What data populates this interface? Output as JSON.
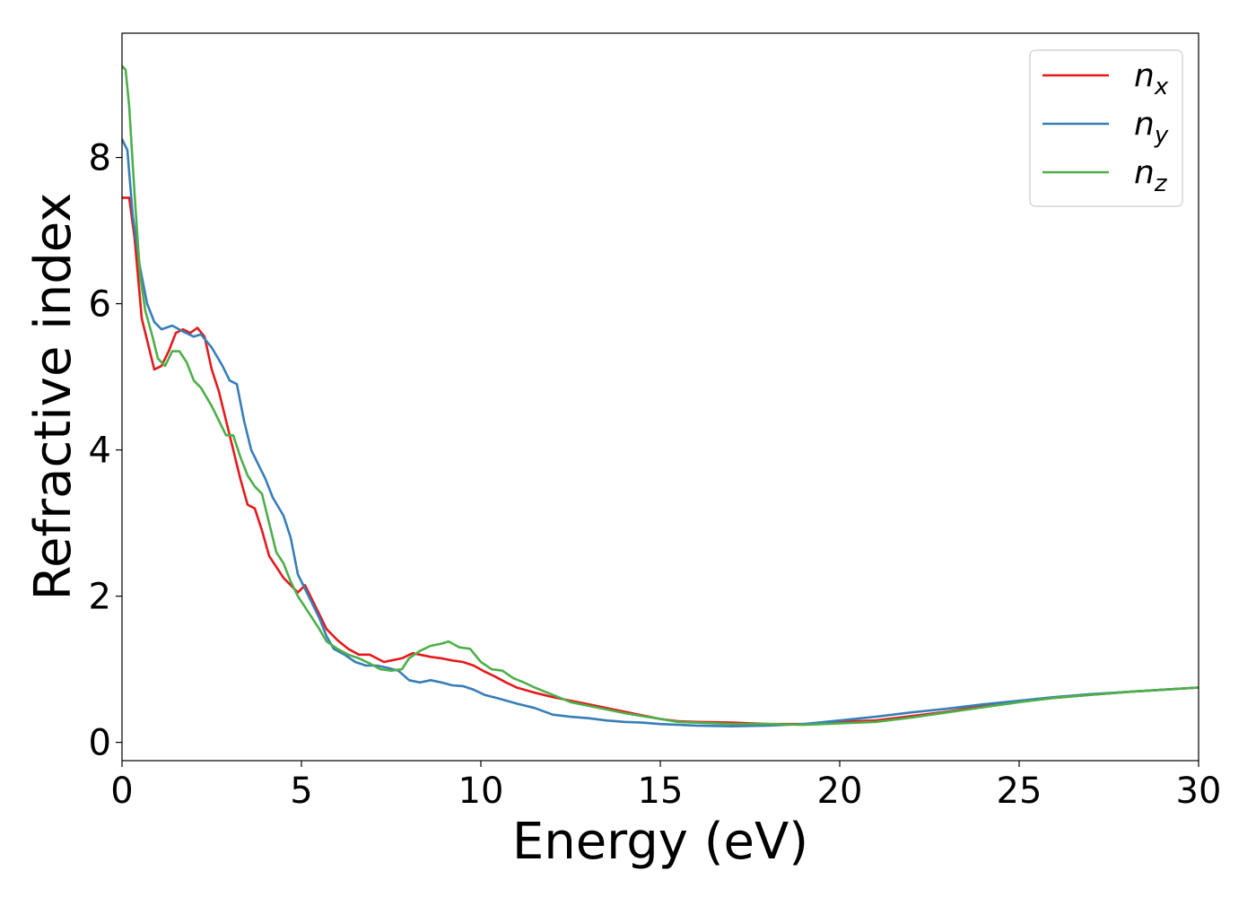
{
  "chart_data": {
    "type": "line",
    "title": "",
    "xlabel": "Energy (eV)",
    "ylabel": "Refractive index",
    "xlim": [
      0,
      30
    ],
    "ylim": [
      -0.25,
      9.7
    ],
    "xticks": [
      "0",
      "5",
      "10",
      "15",
      "20",
      "25",
      "30"
    ],
    "yticks": [
      "0",
      "2",
      "4",
      "6",
      "8"
    ],
    "grid": false,
    "legend_position": "top-right",
    "series": [
      {
        "name": "n",
        "subscript": "x",
        "color": "#e41a1c",
        "points": [
          [
            0,
            7.45
          ],
          [
            0.2,
            7.45
          ],
          [
            0.35,
            6.9
          ],
          [
            0.55,
            5.8
          ],
          [
            0.7,
            5.5
          ],
          [
            0.9,
            5.1
          ],
          [
            1.1,
            5.15
          ],
          [
            1.3,
            5.35
          ],
          [
            1.5,
            5.6
          ],
          [
            1.7,
            5.65
          ],
          [
            1.9,
            5.6
          ],
          [
            2.1,
            5.67
          ],
          [
            2.3,
            5.55
          ],
          [
            2.5,
            5.1
          ],
          [
            2.7,
            4.8
          ],
          [
            2.9,
            4.4
          ],
          [
            3.1,
            4.0
          ],
          [
            3.3,
            3.6
          ],
          [
            3.5,
            3.25
          ],
          [
            3.7,
            3.2
          ],
          [
            3.9,
            2.9
          ],
          [
            4.1,
            2.55
          ],
          [
            4.3,
            2.4
          ],
          [
            4.5,
            2.25
          ],
          [
            4.7,
            2.15
          ],
          [
            4.9,
            2.05
          ],
          [
            5.1,
            2.15
          ],
          [
            5.3,
            1.95
          ],
          [
            5.5,
            1.75
          ],
          [
            5.7,
            1.55
          ],
          [
            6.0,
            1.4
          ],
          [
            6.3,
            1.28
          ],
          [
            6.6,
            1.2
          ],
          [
            6.9,
            1.2
          ],
          [
            7.1,
            1.15
          ],
          [
            7.3,
            1.1
          ],
          [
            7.5,
            1.12
          ],
          [
            7.8,
            1.15
          ],
          [
            8.1,
            1.22
          ],
          [
            8.3,
            1.2
          ],
          [
            8.6,
            1.17
          ],
          [
            8.9,
            1.15
          ],
          [
            9.2,
            1.12
          ],
          [
            9.5,
            1.1
          ],
          [
            9.8,
            1.05
          ],
          [
            10.1,
            0.97
          ],
          [
            10.4,
            0.9
          ],
          [
            10.7,
            0.82
          ],
          [
            11.0,
            0.75
          ],
          [
            11.5,
            0.68
          ],
          [
            12.0,
            0.62
          ],
          [
            12.5,
            0.57
          ],
          [
            13.0,
            0.52
          ],
          [
            13.5,
            0.47
          ],
          [
            14.0,
            0.42
          ],
          [
            14.5,
            0.37
          ],
          [
            15.0,
            0.32
          ],
          [
            15.5,
            0.29
          ],
          [
            16.0,
            0.28
          ],
          [
            17.0,
            0.27
          ],
          [
            18.0,
            0.25
          ],
          [
            19.0,
            0.25
          ],
          [
            20.0,
            0.28
          ],
          [
            21.0,
            0.3
          ],
          [
            22.0,
            0.36
          ],
          [
            23.0,
            0.42
          ],
          [
            24.0,
            0.5
          ],
          [
            25.0,
            0.56
          ],
          [
            26.0,
            0.61
          ],
          [
            27.0,
            0.65
          ],
          [
            28.0,
            0.69
          ],
          [
            29.0,
            0.72
          ],
          [
            30.0,
            0.75
          ]
        ]
      },
      {
        "name": "n",
        "subscript": "y",
        "color": "#377eb8",
        "points": [
          [
            0,
            8.25
          ],
          [
            0.15,
            8.1
          ],
          [
            0.3,
            7.2
          ],
          [
            0.5,
            6.5
          ],
          [
            0.7,
            6.0
          ],
          [
            0.9,
            5.75
          ],
          [
            1.1,
            5.65
          ],
          [
            1.4,
            5.7
          ],
          [
            1.7,
            5.62
          ],
          [
            2.0,
            5.55
          ],
          [
            2.2,
            5.58
          ],
          [
            2.5,
            5.4
          ],
          [
            2.8,
            5.15
          ],
          [
            3.0,
            4.95
          ],
          [
            3.2,
            4.9
          ],
          [
            3.4,
            4.4
          ],
          [
            3.6,
            4.0
          ],
          [
            3.8,
            3.8
          ],
          [
            4.0,
            3.6
          ],
          [
            4.2,
            3.35
          ],
          [
            4.5,
            3.1
          ],
          [
            4.7,
            2.8
          ],
          [
            4.9,
            2.3
          ],
          [
            5.1,
            2.1
          ],
          [
            5.3,
            1.9
          ],
          [
            5.5,
            1.7
          ],
          [
            5.7,
            1.45
          ],
          [
            5.9,
            1.28
          ],
          [
            6.2,
            1.2
          ],
          [
            6.5,
            1.1
          ],
          [
            6.8,
            1.05
          ],
          [
            7.1,
            1.05
          ],
          [
            7.4,
            1.02
          ],
          [
            7.7,
            0.98
          ],
          [
            8.0,
            0.85
          ],
          [
            8.3,
            0.82
          ],
          [
            8.6,
            0.85
          ],
          [
            8.9,
            0.82
          ],
          [
            9.2,
            0.78
          ],
          [
            9.5,
            0.77
          ],
          [
            9.8,
            0.72
          ],
          [
            10.1,
            0.65
          ],
          [
            10.5,
            0.6
          ],
          [
            11.0,
            0.53
          ],
          [
            11.5,
            0.47
          ],
          [
            12.0,
            0.38
          ],
          [
            12.5,
            0.35
          ],
          [
            13.0,
            0.33
          ],
          [
            13.5,
            0.3
          ],
          [
            14.0,
            0.28
          ],
          [
            14.5,
            0.27
          ],
          [
            15.0,
            0.25
          ],
          [
            16.0,
            0.23
          ],
          [
            17.0,
            0.22
          ],
          [
            18.0,
            0.23
          ],
          [
            19.0,
            0.25
          ],
          [
            20.0,
            0.3
          ],
          [
            21.0,
            0.35
          ],
          [
            22.0,
            0.41
          ],
          [
            23.0,
            0.46
          ],
          [
            24.0,
            0.52
          ],
          [
            25.0,
            0.57
          ],
          [
            26.0,
            0.62
          ],
          [
            27.0,
            0.66
          ],
          [
            28.0,
            0.69
          ],
          [
            29.0,
            0.72
          ],
          [
            30.0,
            0.75
          ]
        ]
      },
      {
        "name": "n",
        "subscript": "z",
        "color": "#4daf4a",
        "points": [
          [
            0,
            9.25
          ],
          [
            0.1,
            9.2
          ],
          [
            0.2,
            8.7
          ],
          [
            0.35,
            7.5
          ],
          [
            0.5,
            6.4
          ],
          [
            0.65,
            5.9
          ],
          [
            0.85,
            5.55
          ],
          [
            1.0,
            5.25
          ],
          [
            1.2,
            5.15
          ],
          [
            1.4,
            5.35
          ],
          [
            1.6,
            5.35
          ],
          [
            1.8,
            5.2
          ],
          [
            2.0,
            4.95
          ],
          [
            2.2,
            4.85
          ],
          [
            2.5,
            4.6
          ],
          [
            2.7,
            4.4
          ],
          [
            2.9,
            4.2
          ],
          [
            3.1,
            4.2
          ],
          [
            3.3,
            3.9
          ],
          [
            3.5,
            3.65
          ],
          [
            3.7,
            3.5
          ],
          [
            3.9,
            3.4
          ],
          [
            4.1,
            3.0
          ],
          [
            4.3,
            2.6
          ],
          [
            4.5,
            2.45
          ],
          [
            4.7,
            2.2
          ],
          [
            4.9,
            2.0
          ],
          [
            5.1,
            1.85
          ],
          [
            5.3,
            1.7
          ],
          [
            5.5,
            1.55
          ],
          [
            5.7,
            1.38
          ],
          [
            6.0,
            1.28
          ],
          [
            6.3,
            1.2
          ],
          [
            6.6,
            1.15
          ],
          [
            6.9,
            1.08
          ],
          [
            7.2,
            1.0
          ],
          [
            7.5,
            0.98
          ],
          [
            7.8,
            1.0
          ],
          [
            8.0,
            1.15
          ],
          [
            8.3,
            1.25
          ],
          [
            8.6,
            1.32
          ],
          [
            8.9,
            1.35
          ],
          [
            9.1,
            1.38
          ],
          [
            9.4,
            1.3
          ],
          [
            9.7,
            1.28
          ],
          [
            10.0,
            1.1
          ],
          [
            10.3,
            1.0
          ],
          [
            10.6,
            0.98
          ],
          [
            10.9,
            0.88
          ],
          [
            11.2,
            0.82
          ],
          [
            11.5,
            0.75
          ],
          [
            12.0,
            0.65
          ],
          [
            12.5,
            0.55
          ],
          [
            13.0,
            0.5
          ],
          [
            13.5,
            0.45
          ],
          [
            14.0,
            0.4
          ],
          [
            14.5,
            0.36
          ],
          [
            15.0,
            0.32
          ],
          [
            15.5,
            0.28
          ],
          [
            16.0,
            0.27
          ],
          [
            17.0,
            0.25
          ],
          [
            18.0,
            0.25
          ],
          [
            19.0,
            0.24
          ],
          [
            20.0,
            0.26
          ],
          [
            21.0,
            0.28
          ],
          [
            22.0,
            0.34
          ],
          [
            23.0,
            0.41
          ],
          [
            24.0,
            0.48
          ],
          [
            25.0,
            0.55
          ],
          [
            26.0,
            0.61
          ],
          [
            27.0,
            0.65
          ],
          [
            28.0,
            0.69
          ],
          [
            29.0,
            0.72
          ],
          [
            30.0,
            0.75
          ]
        ]
      }
    ]
  }
}
